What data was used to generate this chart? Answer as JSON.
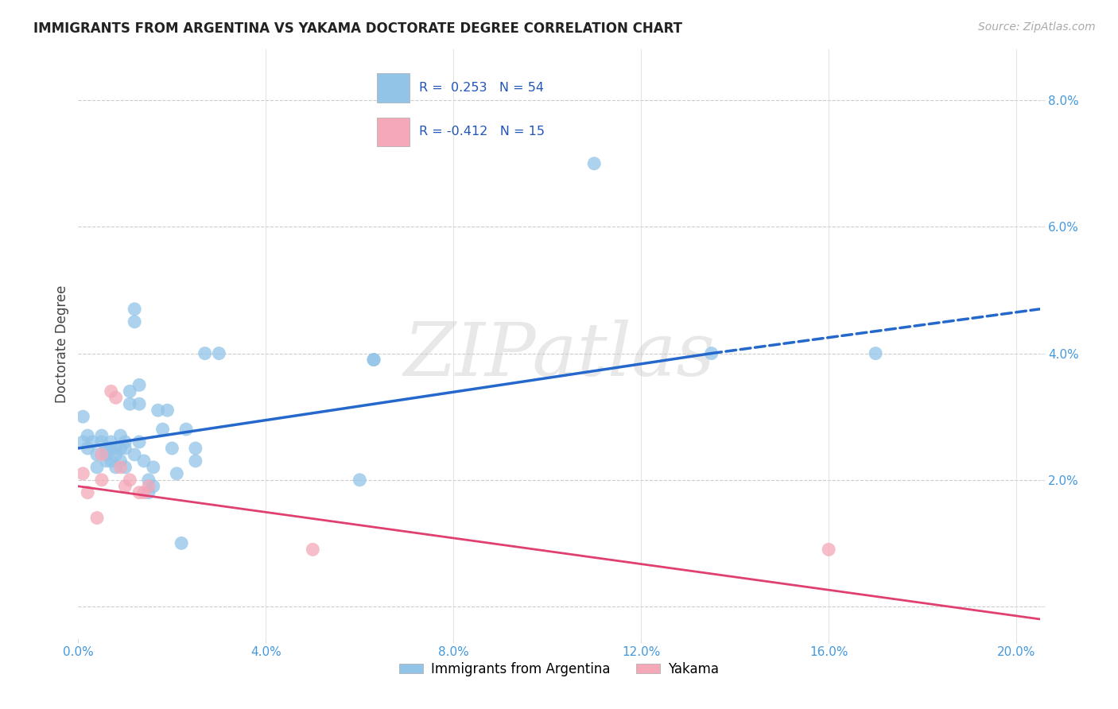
{
  "title": "IMMIGRANTS FROM ARGENTINA VS YAKAMA DOCTORATE DEGREE CORRELATION CHART",
  "source": "Source: ZipAtlas.com",
  "ylabel": "Doctorate Degree",
  "xlim": [
    0.0,
    0.205
  ],
  "ylim": [
    -0.005,
    0.088
  ],
  "xticks": [
    0.0,
    0.04,
    0.08,
    0.12,
    0.16,
    0.2
  ],
  "yticks": [
    0.0,
    0.02,
    0.04,
    0.06,
    0.08
  ],
  "xticklabels": [
    "0.0%",
    "4.0%",
    "8.0%",
    "12.0%",
    "16.0%",
    "20.0%"
  ],
  "yticklabels_right": [
    "",
    "2.0%",
    "4.0%",
    "6.0%",
    "8.0%"
  ],
  "blue_color": "#92C4E8",
  "blue_line_color": "#2468CC",
  "pink_color": "#F4A8B8",
  "pink_line_color": "#E04070",
  "watermark": "ZIPatlas",
  "blue_scatter_x": [
    0.001,
    0.001,
    0.002,
    0.002,
    0.003,
    0.004,
    0.004,
    0.005,
    0.005,
    0.006,
    0.006,
    0.006,
    0.007,
    0.007,
    0.007,
    0.008,
    0.008,
    0.008,
    0.009,
    0.009,
    0.009,
    0.01,
    0.01,
    0.01,
    0.011,
    0.011,
    0.012,
    0.012,
    0.012,
    0.013,
    0.013,
    0.013,
    0.014,
    0.015,
    0.015,
    0.016,
    0.016,
    0.017,
    0.018,
    0.019,
    0.02,
    0.021,
    0.022,
    0.023,
    0.025,
    0.025,
    0.027,
    0.03,
    0.06,
    0.063,
    0.063,
    0.11,
    0.135,
    0.17
  ],
  "blue_scatter_y": [
    0.026,
    0.03,
    0.027,
    0.025,
    0.026,
    0.024,
    0.022,
    0.027,
    0.026,
    0.025,
    0.024,
    0.023,
    0.026,
    0.025,
    0.023,
    0.025,
    0.024,
    0.022,
    0.027,
    0.025,
    0.023,
    0.026,
    0.025,
    0.022,
    0.034,
    0.032,
    0.045,
    0.047,
    0.024,
    0.035,
    0.032,
    0.026,
    0.023,
    0.02,
    0.018,
    0.022,
    0.019,
    0.031,
    0.028,
    0.031,
    0.025,
    0.021,
    0.01,
    0.028,
    0.025,
    0.023,
    0.04,
    0.04,
    0.02,
    0.039,
    0.039,
    0.07,
    0.04,
    0.04
  ],
  "pink_scatter_x": [
    0.001,
    0.002,
    0.005,
    0.005,
    0.007,
    0.008,
    0.009,
    0.01,
    0.011,
    0.013,
    0.014,
    0.015,
    0.05,
    0.16,
    0.004
  ],
  "pink_scatter_y": [
    0.021,
    0.018,
    0.02,
    0.024,
    0.034,
    0.033,
    0.022,
    0.019,
    0.02,
    0.018,
    0.018,
    0.019,
    0.009,
    0.009,
    0.014
  ],
  "blue_line_x0": 0.0,
  "blue_line_x1": 0.135,
  "blue_line_x2": 0.205,
  "blue_line_y0": 0.025,
  "blue_line_y1": 0.04,
  "blue_line_y2": 0.047,
  "pink_line_x0": 0.0,
  "pink_line_x1": 0.205,
  "pink_line_y0": 0.019,
  "pink_line_y1": -0.002
}
